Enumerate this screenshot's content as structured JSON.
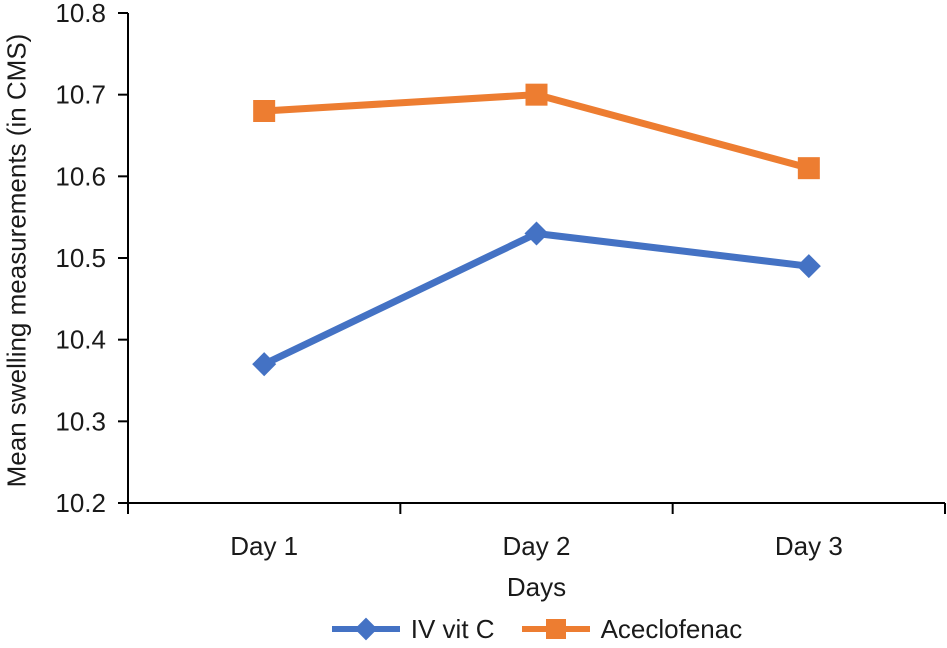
{
  "chart_data": {
    "type": "line",
    "categories": [
      "Day 1",
      "Day 2",
      "Day 3"
    ],
    "series": [
      {
        "name": "IV vit C",
        "values": [
          10.37,
          10.53,
          10.49
        ],
        "color": "#4472C4",
        "marker": "diamond"
      },
      {
        "name": "Aceclofenac",
        "values": [
          10.68,
          10.7,
          10.61
        ],
        "color": "#ED7D31",
        "marker": "square"
      }
    ],
    "title": "",
    "xlabel": "Days",
    "ylabel": "Mean swelling measurements (in CMS)",
    "ylim": [
      10.2,
      10.8
    ],
    "ytick_step": 0.1,
    "ytick_decimals": 1,
    "grid": false,
    "legend_position": "bottom",
    "axis_color": "#000000",
    "text_color": "#1a1a1a"
  }
}
